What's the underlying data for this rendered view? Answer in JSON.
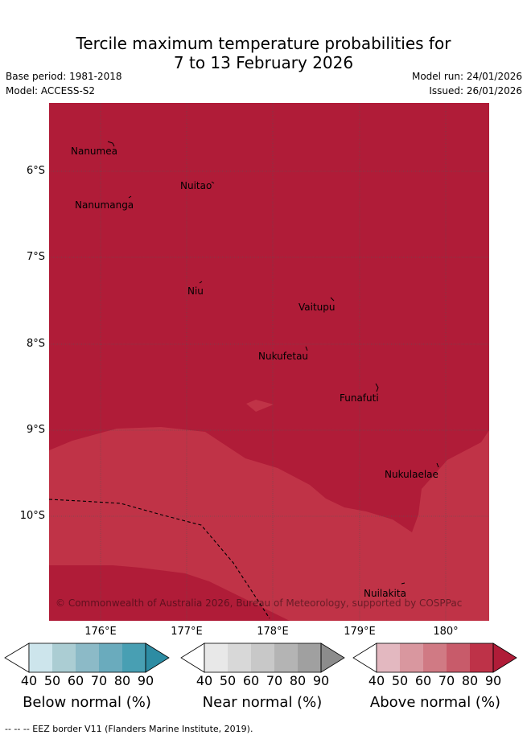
{
  "title": {
    "line1": "Tercile maximum temperature probabilities for",
    "line2": "7 to 13 February 2026"
  },
  "meta": {
    "base_period": "Base period: 1981-2018",
    "model": "Model: ACCESS-S2",
    "model_run": "Model run: 24/01/2026",
    "issued": "Issued: 26/01/2026"
  },
  "map": {
    "colors": {
      "above_90": "#b01c38",
      "above_80": "#c03347",
      "eez_line": "#000000",
      "grid": "#555555"
    },
    "islands": [
      "Nanumea",
      "Nuitao",
      "Nanumanga",
      "Niu",
      "Vaitupu",
      "Nukufetau",
      "Funafuti",
      "Nukulaelae",
      "Nuilakita"
    ],
    "lat_labels": [
      "6°S",
      "7°S",
      "8°S",
      "9°S",
      "10°S"
    ],
    "lon_labels": [
      "176°E",
      "177°E",
      "178°E",
      "179°E",
      "180°"
    ],
    "copyright": "© Commonwealth of Australia 2026, Bureau of Meteorology, supported by COSPPac"
  },
  "colorbars": [
    {
      "label": "Below normal (%)",
      "ticks": [
        "40",
        "50",
        "60",
        "70",
        "80",
        "90"
      ],
      "colors": [
        "#ffffff",
        "#cde5ec",
        "#abcdd3",
        "#8cbac7",
        "#6aabbd",
        "#489fb3",
        "#2d8ca3"
      ]
    },
    {
      "label": "Near normal (%)",
      "ticks": [
        "40",
        "50",
        "60",
        "70",
        "80",
        "90"
      ],
      "colors": [
        "#ffffff",
        "#e8e8e8",
        "#d8d8d8",
        "#c8c8c8",
        "#b4b4b4",
        "#a0a0a0",
        "#8c8c8c"
      ]
    },
    {
      "label": "Above normal (%)",
      "ticks": [
        "40",
        "50",
        "60",
        "70",
        "80",
        "90"
      ],
      "colors": [
        "#ffffff",
        "#e3b8c0",
        "#d9979f",
        "#d07a84",
        "#c85b6a",
        "#be3248",
        "#b01c38"
      ]
    }
  ],
  "footer": "--  --  -- EEZ border V11 (Flanders Marine Institute, 2019)."
}
